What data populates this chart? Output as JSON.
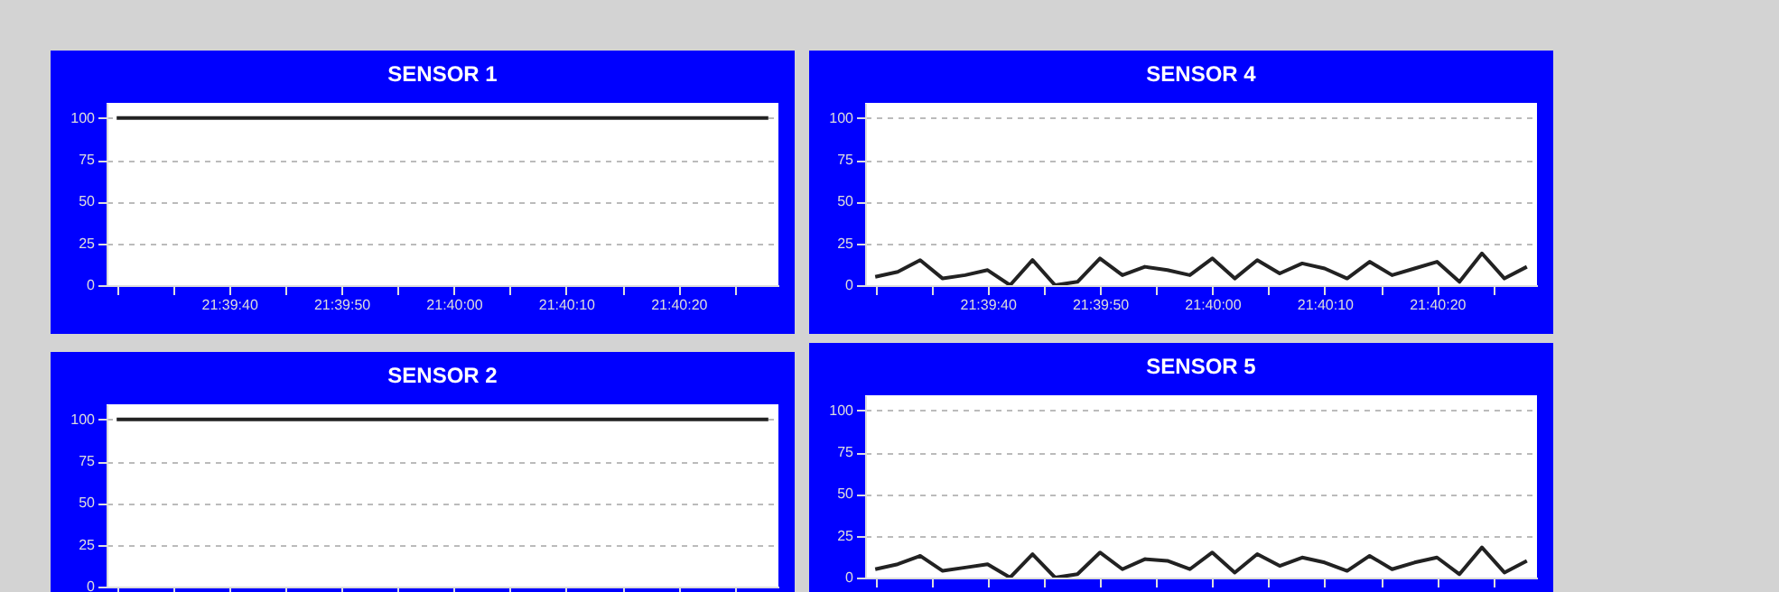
{
  "chart_data": [
    {
      "type": "line",
      "title": "SENSOR 1",
      "x": [
        21.658333,
        21.658889,
        21.659444,
        21.66,
        21.660556,
        21.661111,
        21.661667,
        21.662222,
        21.662778,
        21.663333,
        21.663889,
        21.664444,
        21.665,
        21.665556,
        21.666111,
        21.666667,
        21.667222,
        21.667778,
        21.668333,
        21.668889,
        21.669444,
        21.67,
        21.670556,
        21.671111,
        21.671667,
        21.672222,
        21.672778,
        21.673333,
        21.673889,
        21.674444
      ],
      "values": [
        100,
        100,
        100,
        100,
        100,
        100,
        100,
        100,
        100,
        100,
        100,
        100,
        100,
        100,
        100,
        100,
        100,
        100,
        100,
        100,
        100,
        100,
        100,
        100,
        100,
        100,
        100,
        100,
        100,
        100
      ],
      "color": "#222222",
      "xlim": [
        21.658083,
        21.674694
      ],
      "xticks": [
        {
          "value": 21.658333,
          "label": null
        },
        {
          "value": 21.659722,
          "label": null
        },
        {
          "value": 21.661111,
          "label": "21:39:40"
        },
        {
          "value": 21.6625,
          "label": null
        },
        {
          "value": 21.663889,
          "label": "21:39:50"
        },
        {
          "value": 21.665278,
          "label": null
        },
        {
          "value": 21.666667,
          "label": "21:40:00"
        },
        {
          "value": 21.668056,
          "label": null
        },
        {
          "value": 21.669444,
          "label": "21:40:10"
        },
        {
          "value": 21.670833,
          "label": null
        },
        {
          "value": 21.672222,
          "label": "21:40:20"
        },
        {
          "value": 21.673611,
          "label": null
        }
      ],
      "ylim": [
        0,
        109
      ],
      "yticks": [
        0,
        25,
        50,
        75,
        100
      ],
      "grid": "y"
    },
    {
      "type": "line",
      "title": "SENSOR 4",
      "x": [
        21.658333,
        21.658889,
        21.659444,
        21.66,
        21.660556,
        21.661111,
        21.661667,
        21.662222,
        21.662778,
        21.663333,
        21.663889,
        21.664444,
        21.665,
        21.665556,
        21.666111,
        21.666667,
        21.667222,
        21.667778,
        21.668333,
        21.668889,
        21.669444,
        21.67,
        21.670556,
        21.671111,
        21.671667,
        21.672222,
        21.672778,
        21.673333,
        21.673889,
        21.674444
      ],
      "values": [
        5,
        8,
        15,
        4,
        6,
        9,
        0,
        15,
        0,
        2,
        16,
        6,
        11,
        9,
        6,
        16,
        4,
        15,
        7,
        13,
        10,
        4,
        14,
        6,
        10,
        14,
        2,
        19,
        4,
        11
      ],
      "color": "#222222",
      "xlim": [
        21.658083,
        21.674694
      ],
      "xticks": [
        {
          "value": 21.658333,
          "label": null
        },
        {
          "value": 21.659722,
          "label": null
        },
        {
          "value": 21.661111,
          "label": "21:39:40"
        },
        {
          "value": 21.6625,
          "label": null
        },
        {
          "value": 21.663889,
          "label": "21:39:50"
        },
        {
          "value": 21.665278,
          "label": null
        },
        {
          "value": 21.666667,
          "label": "21:40:00"
        },
        {
          "value": 21.668056,
          "label": null
        },
        {
          "value": 21.669444,
          "label": "21:40:10"
        },
        {
          "value": 21.670833,
          "label": null
        },
        {
          "value": 21.672222,
          "label": "21:40:20"
        },
        {
          "value": 21.673611,
          "label": null
        }
      ],
      "ylim": [
        0,
        109
      ],
      "yticks": [
        0,
        25,
        50,
        75,
        100
      ],
      "grid": "y"
    },
    {
      "type": "line",
      "title": "SENSOR 2",
      "x": [
        21.658333,
        21.658889,
        21.659444,
        21.66,
        21.660556,
        21.661111,
        21.661667,
        21.662222,
        21.662778,
        21.663333,
        21.663889,
        21.664444,
        21.665,
        21.665556,
        21.666111,
        21.666667,
        21.667222,
        21.667778,
        21.668333,
        21.668889,
        21.669444,
        21.67,
        21.670556,
        21.671111,
        21.671667,
        21.672222,
        21.672778,
        21.673333,
        21.673889,
        21.674444
      ],
      "values": [
        100,
        100,
        100,
        100,
        100,
        100,
        100,
        100,
        100,
        100,
        100,
        100,
        100,
        100,
        100,
        100,
        100,
        100,
        100,
        100,
        100,
        100,
        100,
        100,
        100,
        100,
        100,
        100,
        100,
        100
      ],
      "color": "#222222",
      "xlim": [
        21.658083,
        21.674694
      ],
      "xticks": [
        {
          "value": 21.658333,
          "label": null
        },
        {
          "value": 21.659722,
          "label": null
        },
        {
          "value": 21.661111,
          "label": null
        },
        {
          "value": 21.6625,
          "label": null
        },
        {
          "value": 21.663889,
          "label": null
        },
        {
          "value": 21.665278,
          "label": null
        },
        {
          "value": 21.666667,
          "label": null
        },
        {
          "value": 21.668056,
          "label": null
        },
        {
          "value": 21.669444,
          "label": null
        },
        {
          "value": 21.670833,
          "label": null
        },
        {
          "value": 21.672222,
          "label": null
        },
        {
          "value": 21.673611,
          "label": null
        }
      ],
      "ylim": [
        0,
        109
      ],
      "yticks": [
        0,
        25,
        50,
        75,
        100
      ],
      "grid": "y",
      "tick_labels": "y"
    },
    {
      "type": "line",
      "title": "SENSOR 5",
      "x": [
        21.658333,
        21.658889,
        21.659444,
        21.66,
        21.660556,
        21.661111,
        21.661667,
        21.662222,
        21.662778,
        21.663333,
        21.663889,
        21.664444,
        21.665,
        21.665556,
        21.666111,
        21.666667,
        21.667222,
        21.667778,
        21.668333,
        21.668889,
        21.669444,
        21.67,
        21.670556,
        21.671111,
        21.671667,
        21.672222,
        21.672778,
        21.673333,
        21.673889,
        21.674444
      ],
      "values": [
        5,
        8,
        13,
        4,
        6,
        8,
        0,
        14,
        0,
        2,
        15,
        5,
        11,
        10,
        5,
        15,
        3,
        14,
        7,
        12,
        9,
        4,
        13,
        5,
        9,
        12,
        2,
        18,
        3,
        10
      ],
      "color": "#222222",
      "xlim": [
        21.658083,
        21.674694
      ],
      "xticks": [
        {
          "value": 21.658333,
          "label": null
        },
        {
          "value": 21.659722,
          "label": null
        },
        {
          "value": 21.661111,
          "label": null
        },
        {
          "value": 21.6625,
          "label": null
        },
        {
          "value": 21.663889,
          "label": null
        },
        {
          "value": 21.665278,
          "label": null
        },
        {
          "value": 21.666667,
          "label": null
        },
        {
          "value": 21.668056,
          "label": null
        },
        {
          "value": 21.669444,
          "label": null
        },
        {
          "value": 21.670833,
          "label": null
        },
        {
          "value": 21.672222,
          "label": null
        },
        {
          "value": 21.673611,
          "label": null
        }
      ],
      "ylim": [
        0,
        109
      ],
      "yticks": [
        0,
        25,
        50,
        75,
        100
      ],
      "grid": "y",
      "tick_labels": "y"
    }
  ]
}
